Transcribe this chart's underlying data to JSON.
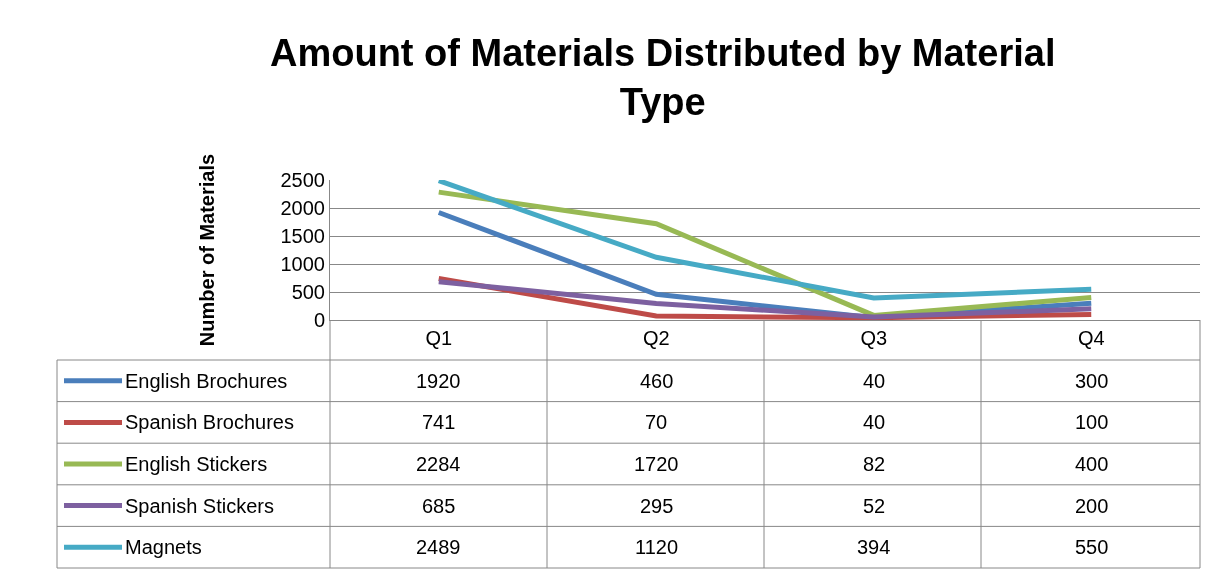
{
  "chart_data": {
    "type": "line",
    "title": "Amount of Materials Distributed by Material Type",
    "ylabel": "Number of Materials",
    "categories": [
      "Q1",
      "Q2",
      "Q3",
      "Q4"
    ],
    "series": [
      {
        "name": "English Brochures",
        "color": "#4a7ebb",
        "values": [
          1920,
          460,
          40,
          300
        ]
      },
      {
        "name": "Spanish Brochures",
        "color": "#be4b48",
        "values": [
          741,
          70,
          40,
          100
        ]
      },
      {
        "name": "English Stickers",
        "color": "#98b954",
        "values": [
          2284,
          1720,
          82,
          400
        ]
      },
      {
        "name": "Spanish Stickers",
        "color": "#7d60a0",
        "values": [
          685,
          295,
          52,
          200
        ]
      },
      {
        "name": "Magnets",
        "color": "#46aac5",
        "values": [
          2489,
          1120,
          394,
          550
        ]
      }
    ],
    "ylim": [
      0,
      2500
    ],
    "yticks": [
      0,
      500,
      1000,
      1500,
      2000,
      2500
    ],
    "grid": "y",
    "legend": "bottom",
    "data_labels": true,
    "marker": "none",
    "line_style": "solid"
  }
}
